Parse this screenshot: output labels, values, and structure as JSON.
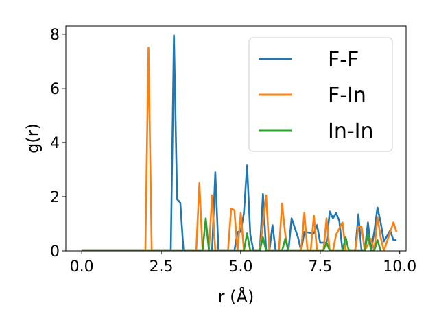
{
  "chart_data": {
    "type": "line",
    "title": "",
    "xlabel": "r (Å)",
    "ylabel": "g(r)",
    "xlim": [
      -0.5,
      10.2
    ],
    "ylim": [
      0,
      8.3
    ],
    "xticks": [
      0.0,
      2.5,
      5.0,
      7.5,
      10.0
    ],
    "xtick_labels": [
      "0.0",
      "2.5",
      "5.0",
      "7.5",
      "10.0"
    ],
    "yticks": [
      0,
      2,
      4,
      6,
      8
    ],
    "ytick_labels": [
      "0",
      "2",
      "4",
      "6",
      "8"
    ],
    "grid": false,
    "legend_position": "top-right",
    "series": [
      {
        "name": "F-F",
        "color": "#1f77b4",
        "points": [
          [
            0,
            0
          ],
          [
            2.8,
            0
          ],
          [
            2.9,
            7.95
          ],
          [
            3.0,
            1.9
          ],
          [
            3.1,
            1.78
          ],
          [
            3.2,
            0
          ],
          [
            4.1,
            0
          ],
          [
            4.2,
            2.9
          ],
          [
            4.3,
            0
          ],
          [
            4.8,
            0
          ],
          [
            4.9,
            0.7
          ],
          [
            5.0,
            0.7
          ],
          [
            5.1,
            1.4
          ],
          [
            5.2,
            3.15
          ],
          [
            5.3,
            0.6
          ],
          [
            5.4,
            0
          ],
          [
            5.6,
            0
          ],
          [
            5.7,
            2.1
          ],
          [
            5.8,
            0
          ],
          [
            5.9,
            0
          ],
          [
            6.0,
            0.95
          ],
          [
            6.1,
            0
          ],
          [
            6.5,
            0
          ],
          [
            6.6,
            1.2
          ],
          [
            6.8,
            0.5
          ],
          [
            6.9,
            0
          ],
          [
            7.0,
            0.7
          ],
          [
            7.3,
            0.65
          ],
          [
            7.4,
            0.95
          ],
          [
            7.5,
            0.3
          ],
          [
            7.7,
            0.3
          ],
          [
            7.8,
            1.45
          ],
          [
            7.9,
            1.2
          ],
          [
            8.0,
            1.4
          ],
          [
            8.1,
            1.1
          ],
          [
            8.2,
            0
          ],
          [
            8.6,
            0
          ],
          [
            8.7,
            1.35
          ],
          [
            8.8,
            0
          ],
          [
            8.9,
            0
          ],
          [
            9.0,
            1.05
          ],
          [
            9.1,
            0
          ],
          [
            9.2,
            0.7
          ],
          [
            9.3,
            1.6
          ],
          [
            9.4,
            1.05
          ],
          [
            9.5,
            0.35
          ],
          [
            9.6,
            0.55
          ],
          [
            9.7,
            0.75
          ],
          [
            9.8,
            0.4
          ],
          [
            9.9,
            0.4
          ]
        ]
      },
      {
        "name": "F-In",
        "color": "#ff7f0e",
        "points": [
          [
            0,
            0
          ],
          [
            2.0,
            0
          ],
          [
            2.1,
            7.5
          ],
          [
            2.2,
            0
          ],
          [
            3.6,
            0
          ],
          [
            3.7,
            2.5
          ],
          [
            3.8,
            0
          ],
          [
            4.0,
            0
          ],
          [
            4.1,
            2.05
          ],
          [
            4.2,
            0
          ],
          [
            4.6,
            0
          ],
          [
            4.7,
            1.55
          ],
          [
            4.8,
            1.5
          ],
          [
            4.9,
            0
          ],
          [
            5.0,
            1.4
          ],
          [
            5.1,
            0
          ],
          [
            5.6,
            0
          ],
          [
            5.8,
            2.05
          ],
          [
            5.9,
            0
          ],
          [
            6.2,
            0
          ],
          [
            6.3,
            1.75
          ],
          [
            6.4,
            0.6
          ],
          [
            6.5,
            0
          ],
          [
            6.9,
            0
          ],
          [
            7.0,
            1.4
          ],
          [
            7.1,
            0
          ],
          [
            7.2,
            0
          ],
          [
            7.3,
            1.3
          ],
          [
            7.4,
            0
          ],
          [
            7.6,
            0
          ],
          [
            7.7,
            1.2
          ],
          [
            7.8,
            0
          ],
          [
            7.9,
            0
          ],
          [
            8.0,
            0.6
          ],
          [
            8.2,
            1.05
          ],
          [
            8.3,
            0
          ],
          [
            8.6,
            0
          ],
          [
            8.7,
            0.9
          ],
          [
            8.8,
            0.9
          ],
          [
            8.9,
            0
          ],
          [
            9.1,
            0.45
          ],
          [
            9.2,
            0
          ],
          [
            9.3,
            1.25
          ],
          [
            9.4,
            0.5
          ],
          [
            9.5,
            0
          ],
          [
            9.8,
            1.05
          ],
          [
            9.9,
            0.7
          ]
        ]
      },
      {
        "name": "In-In",
        "color": "#2ca02c",
        "points": [
          [
            0,
            0
          ],
          [
            3.8,
            0
          ],
          [
            3.9,
            1.2
          ],
          [
            4.0,
            0
          ],
          [
            5.1,
            0
          ],
          [
            5.2,
            0.65
          ],
          [
            5.3,
            0
          ],
          [
            5.6,
            0
          ],
          [
            5.7,
            0.5
          ],
          [
            5.8,
            0
          ],
          [
            6.3,
            0
          ],
          [
            6.4,
            0.45
          ],
          [
            6.5,
            0
          ],
          [
            7.6,
            0
          ],
          [
            7.7,
            0.3
          ],
          [
            7.8,
            0
          ],
          [
            8.2,
            0
          ],
          [
            8.3,
            0.5
          ],
          [
            8.4,
            0
          ],
          [
            8.9,
            0
          ],
          [
            9.0,
            0.65
          ],
          [
            9.1,
            0
          ],
          [
            9.2,
            0
          ],
          [
            9.3,
            0.4
          ],
          [
            9.4,
            0
          ]
        ]
      }
    ]
  }
}
